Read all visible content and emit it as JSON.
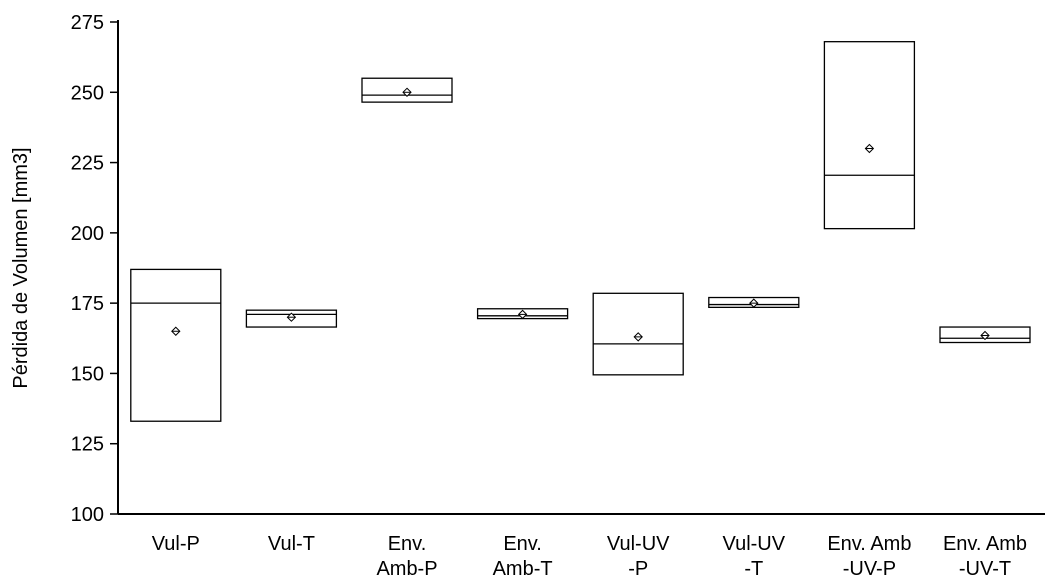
{
  "chart_data": {
    "type": "box",
    "ylabel": "Pérdida de Volumen [mm3]",
    "ylim": [
      100,
      275
    ],
    "yticks": [
      100,
      125,
      150,
      175,
      200,
      225,
      250,
      275
    ],
    "categories": [
      [
        "Vul-P"
      ],
      [
        "Vul-T"
      ],
      [
        "Env.",
        "Amb-P"
      ],
      [
        "Env.",
        "Amb-T"
      ],
      [
        "Vul-UV",
        "-P"
      ],
      [
        "Vul-UV",
        "-T"
      ],
      [
        "Env. Amb",
        "-UV-P"
      ],
      [
        "Env. Amb",
        "-UV-T"
      ]
    ],
    "boxes": [
      {
        "q1": 133,
        "median": 175,
        "q3": 187,
        "mean": 165
      },
      {
        "q1": 166.5,
        "median": 171,
        "q3": 172.5,
        "mean": 170
      },
      {
        "q1": 246.5,
        "median": 249,
        "q3": 255,
        "mean": 250
      },
      {
        "q1": 169.5,
        "median": 170.5,
        "q3": 173,
        "mean": 171
      },
      {
        "q1": 149.5,
        "median": 160.5,
        "q3": 178.5,
        "mean": 163
      },
      {
        "q1": 173.5,
        "median": 174.5,
        "q3": 177,
        "mean": 175
      },
      {
        "q1": 201.5,
        "median": 220.5,
        "q3": 268,
        "mean": 230
      },
      {
        "q1": 161,
        "median": 162.5,
        "q3": 166.5,
        "mean": 163.5
      }
    ],
    "grid": false,
    "legend": "none"
  }
}
